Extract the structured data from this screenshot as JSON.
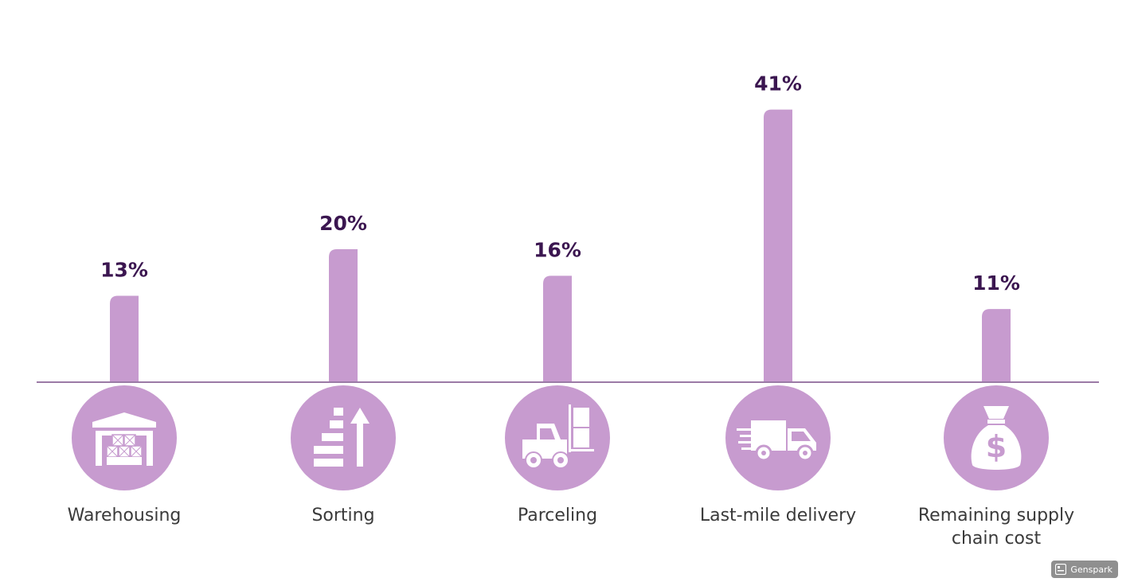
{
  "chart_data": {
    "type": "bar",
    "categories": [
      "Warehousing",
      "Sorting",
      "Parceling",
      "Last-mile delivery",
      "Remaining supply chain cost"
    ],
    "values": [
      13,
      20,
      16,
      41,
      11
    ],
    "value_labels": [
      "13%",
      "20%",
      "16%",
      "41%",
      "11%"
    ],
    "unit": "%",
    "ylim": [
      0,
      45
    ],
    "title": "",
    "xlabel": "",
    "ylabel": "",
    "grid": false,
    "legend": "none",
    "icons": [
      "warehouse-icon",
      "sorting-icon",
      "forklift-icon",
      "delivery-truck-icon",
      "money-bag-icon"
    ]
  },
  "colors": {
    "bar": "#c79bcf",
    "circle": "#c79bcf",
    "axis": "#9b7aa6",
    "value_text": "#3b1650",
    "category_text": "#3a3a3a",
    "badge_bg": "#8f8f8f"
  },
  "badge": {
    "label": "Genspark"
  }
}
